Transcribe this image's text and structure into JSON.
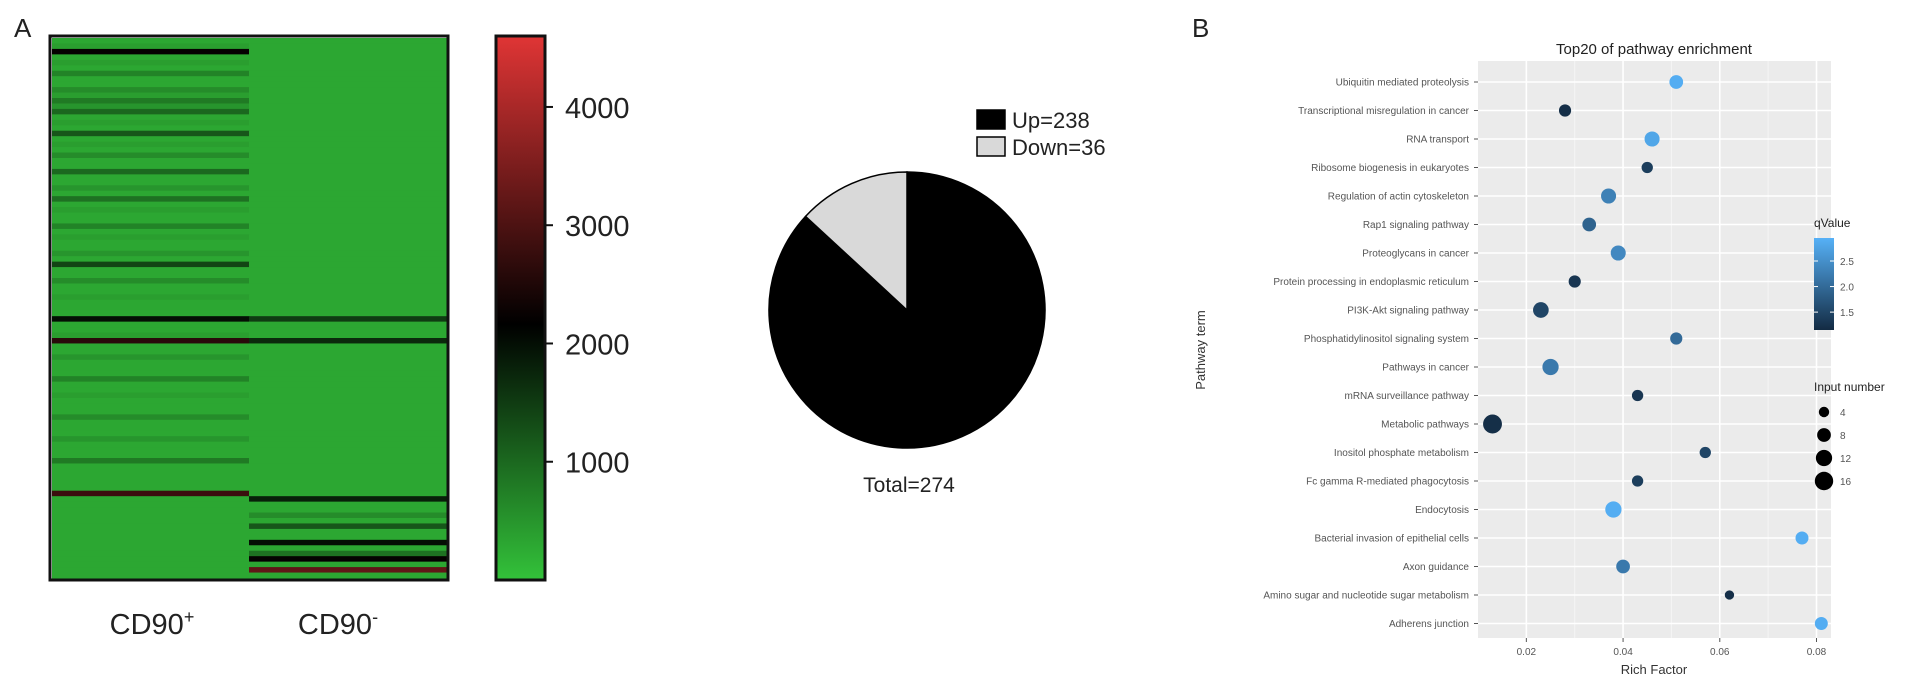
{
  "chart_data": [
    {
      "panel": "A",
      "type": "heatmap",
      "columns": [
        {
          "main": "CD90",
          "sup": "+"
        },
        {
          "main": "CD90",
          "sup": "-"
        }
      ],
      "colorbar": {
        "ticks": [
          1000,
          2000,
          3000,
          4000
        ],
        "range": [
          0,
          4600
        ],
        "colors": {
          "low": "#33c23a",
          "mid": "#000000",
          "high": "#e03535"
        }
      },
      "rows": [
        [
          300,
          300
        ],
        [
          400,
          300
        ],
        [
          2200,
          300
        ],
        [
          300,
          300
        ],
        [
          400,
          300
        ],
        [
          300,
          300
        ],
        [
          700,
          300
        ],
        [
          300,
          300
        ],
        [
          300,
          300
        ],
        [
          600,
          300
        ],
        [
          400,
          300
        ],
        [
          800,
          300
        ],
        [
          500,
          300
        ],
        [
          1000,
          300
        ],
        [
          300,
          300
        ],
        [
          400,
          300
        ],
        [
          300,
          300
        ],
        [
          1200,
          300
        ],
        [
          300,
          300
        ],
        [
          400,
          300
        ],
        [
          300,
          300
        ],
        [
          600,
          300
        ],
        [
          300,
          300
        ],
        [
          300,
          300
        ],
        [
          1000,
          300
        ],
        [
          300,
          300
        ],
        [
          300,
          300
        ],
        [
          500,
          300
        ],
        [
          300,
          300
        ],
        [
          900,
          300
        ],
        [
          300,
          300
        ],
        [
          400,
          300
        ],
        [
          300,
          300
        ],
        [
          300,
          300
        ],
        [
          700,
          300
        ],
        [
          300,
          300
        ],
        [
          400,
          300
        ],
        [
          300,
          300
        ],
        [
          300,
          300
        ],
        [
          500,
          300
        ],
        [
          300,
          300
        ],
        [
          1400,
          300
        ],
        [
          300,
          300
        ],
        [
          300,
          300
        ],
        [
          600,
          300
        ],
        [
          300,
          300
        ],
        [
          300,
          300
        ],
        [
          400,
          300
        ],
        [
          300,
          300
        ],
        [
          300,
          300
        ],
        [
          300,
          300
        ],
        [
          2000,
          1500
        ],
        [
          300,
          300
        ],
        [
          300,
          300
        ],
        [
          400,
          300
        ],
        [
          2600,
          1700
        ],
        [
          300,
          300
        ],
        [
          300,
          300
        ],
        [
          500,
          300
        ],
        [
          300,
          300
        ],
        [
          300,
          300
        ],
        [
          300,
          300
        ],
        [
          700,
          300
        ],
        [
          300,
          300
        ],
        [
          300,
          300
        ],
        [
          400,
          300
        ],
        [
          300,
          300
        ],
        [
          300,
          300
        ],
        [
          300,
          300
        ],
        [
          600,
          300
        ],
        [
          300,
          300
        ],
        [
          300,
          300
        ],
        [
          300,
          300
        ],
        [
          500,
          300
        ],
        [
          300,
          300
        ],
        [
          300,
          300
        ],
        [
          300,
          300
        ],
        [
          800,
          300
        ],
        [
          300,
          300
        ],
        [
          300,
          300
        ],
        [
          300,
          300
        ],
        [
          300,
          300
        ],
        [
          300,
          300
        ],
        [
          2800,
          300
        ],
        [
          300,
          1800
        ],
        [
          300,
          300
        ],
        [
          300,
          300
        ],
        [
          300,
          600
        ],
        [
          300,
          300
        ],
        [
          300,
          1200
        ],
        [
          300,
          300
        ],
        [
          300,
          300
        ],
        [
          300,
          2000
        ],
        [
          300,
          300
        ],
        [
          300,
          900
        ],
        [
          300,
          2200
        ],
        [
          300,
          300
        ],
        [
          300,
          3200
        ],
        [
          300,
          300
        ]
      ]
    },
    {
      "panel": "",
      "type": "pie",
      "slices": [
        {
          "label": "Up=238",
          "value": 238,
          "color": "#000000"
        },
        {
          "label": "Down=36",
          "value": 36,
          "color": "#d9d9d9"
        }
      ],
      "total_label": "Total=274"
    },
    {
      "panel": "B",
      "type": "scatter",
      "title": "Top20 of pathway enrichment",
      "xlabel": "Rich Factor",
      "ylabel": "Pathway term",
      "xlim": [
        0.01,
        0.083
      ],
      "xticks": [
        0.02,
        0.04,
        0.06,
        0.08
      ],
      "xtick_labels": [
        "0.02",
        "0.04",
        "0.06",
        "0.08"
      ],
      "grid": true,
      "categories": [
        "Ubiquitin mediated proteolysis",
        "Transcriptional misregulation in cancer",
        "RNA transport",
        "Ribosome biogenesis in eukaryotes",
        "Regulation of actin cytoskeleton",
        "Rap1 signaling pathway",
        "Proteoglycans in cancer",
        "Protein processing in endoplasmic reticulum",
        "PI3K-Akt signaling pathway",
        "Phosphatidylinositol signaling system",
        "Pathways in cancer",
        "mRNA surveillance pathway",
        "Metabolic pathways",
        "Inositol phosphate metabolism",
        "Fc gamma R-mediated phagocytosis",
        "Endocytosis",
        "Bacterial invasion of epithelial cells",
        "Axon guidance",
        "Amino sugar and nucleotide sugar metabolism",
        "Adherens junction"
      ],
      "points": [
        {
          "x": 0.051,
          "size": 8,
          "q": 2.9
        },
        {
          "x": 0.028,
          "size": 6,
          "q": 1.2
        },
        {
          "x": 0.046,
          "size": 10,
          "q": 2.8
        },
        {
          "x": 0.045,
          "size": 5,
          "q": 1.4
        },
        {
          "x": 0.037,
          "size": 10,
          "q": 2.3
        },
        {
          "x": 0.033,
          "size": 8,
          "q": 1.9
        },
        {
          "x": 0.039,
          "size": 10,
          "q": 2.4
        },
        {
          "x": 0.03,
          "size": 6,
          "q": 1.3
        },
        {
          "x": 0.023,
          "size": 11,
          "q": 1.5
        },
        {
          "x": 0.051,
          "size": 6,
          "q": 2.0
        },
        {
          "x": 0.025,
          "size": 12,
          "q": 2.2
        },
        {
          "x": 0.043,
          "size": 5,
          "q": 1.3
        },
        {
          "x": 0.013,
          "size": 17,
          "q": 1.2
        },
        {
          "x": 0.057,
          "size": 5,
          "q": 1.5
        },
        {
          "x": 0.043,
          "size": 5,
          "q": 1.4
        },
        {
          "x": 0.038,
          "size": 12,
          "q": 2.9
        },
        {
          "x": 0.077,
          "size": 7,
          "q": 2.9
        },
        {
          "x": 0.04,
          "size": 8,
          "q": 2.2
        },
        {
          "x": 0.062,
          "size": 3,
          "q": 1.2
        },
        {
          "x": 0.081,
          "size": 7,
          "q": 2.9
        }
      ],
      "legend_color": {
        "title": "qValue",
        "ticks": [
          1.5,
          2.0,
          2.5
        ],
        "range": [
          1.15,
          2.95
        ],
        "colors": {
          "low": "#132b43",
          "high": "#56b1f7"
        }
      },
      "legend_size": {
        "title": "Input number",
        "values": [
          4,
          8,
          12,
          16
        ]
      }
    }
  ]
}
